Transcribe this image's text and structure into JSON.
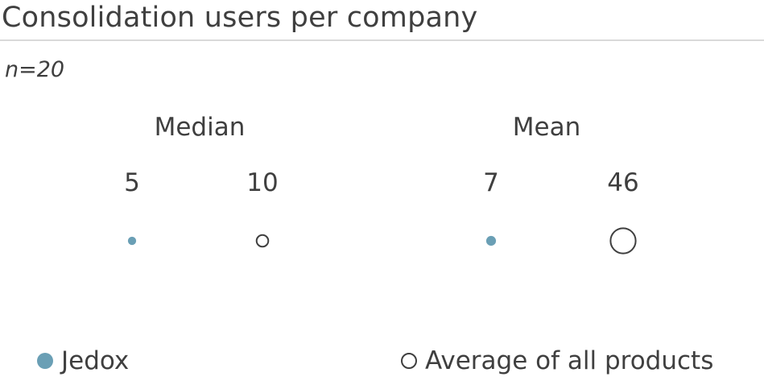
{
  "header": {
    "title": "Consolidation users per company",
    "sample_size": "n=20"
  },
  "legend": {
    "jedox_label": "Jedox",
    "average_label": "Average of all products"
  },
  "colors": {
    "jedox": "#6a9fb5",
    "average_stroke": "#3f3f3f"
  },
  "chart_data": {
    "type": "bubble-comparison",
    "title": "Consolidation users per company",
    "subtitle": "n=20",
    "groups": [
      {
        "label": "Median",
        "series": [
          {
            "name": "Jedox",
            "value": 5,
            "value_label": "5"
          },
          {
            "name": "Average of all products",
            "value": 10,
            "value_label": "10"
          }
        ]
      },
      {
        "label": "Mean",
        "series": [
          {
            "name": "Jedox",
            "value": 7,
            "value_label": "7"
          },
          {
            "name": "Average of all products",
            "value": 46,
            "value_label": "46"
          }
        ]
      }
    ],
    "legend": [
      "Jedox",
      "Average of all products"
    ],
    "legend_position": "bottom"
  }
}
